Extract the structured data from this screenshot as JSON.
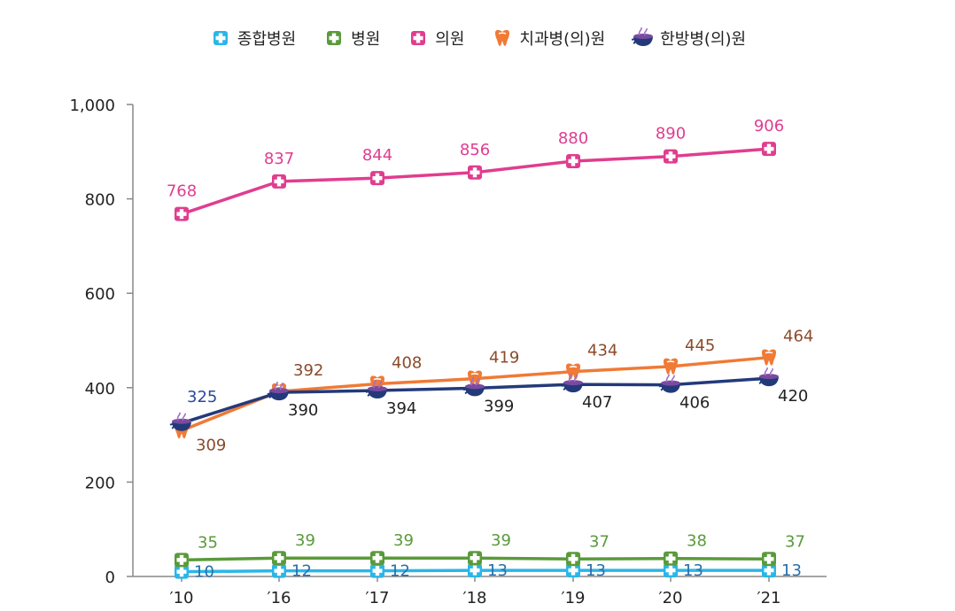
{
  "chart_data": {
    "type": "line",
    "categories": [
      "′10",
      "′16",
      "′17",
      "′18",
      "′19",
      "′20",
      "′21"
    ],
    "ylim": [
      0,
      1000
    ],
    "yticks": [
      "0",
      "200",
      "400",
      "600",
      "800",
      "1,000"
    ],
    "ytick_values": [
      0,
      200,
      400,
      600,
      800,
      1000
    ],
    "grid": false,
    "legend_position": "top-center",
    "series": [
      {
        "name": "종합병원",
        "icon": "medical-cross-icon",
        "color": "#29b6e8",
        "label_color": "#2a6ea8",
        "values": [
          10,
          12,
          12,
          13,
          13,
          13,
          13
        ],
        "labels": [
          "10",
          "12",
          "12",
          "13",
          "13",
          "13",
          "13"
        ]
      },
      {
        "name": "병원",
        "icon": "medical-cross-icon",
        "color": "#5a9a3a",
        "label_color": "#5a9a3a",
        "values": [
          35,
          39,
          39,
          39,
          37,
          38,
          37
        ],
        "labels": [
          "35",
          "39",
          "39",
          "39",
          "37",
          "38",
          "37"
        ]
      },
      {
        "name": "의원",
        "icon": "medical-cross-icon",
        "color": "#e03d8f",
        "label_color": "#e03d8f",
        "values": [
          768,
          837,
          844,
          856,
          880,
          890,
          906
        ],
        "labels": [
          "768",
          "837",
          "844",
          "856",
          "880",
          "890",
          "906"
        ]
      },
      {
        "name": "치과병(의)원",
        "icon": "tooth-icon",
        "color": "#f07a36",
        "label_color": "#8b4a2a",
        "values": [
          309,
          392,
          408,
          419,
          434,
          445,
          464
        ],
        "labels": [
          "309",
          "392",
          "408",
          "419",
          "434",
          "445",
          "464"
        ]
      },
      {
        "name": "한방병(의)원",
        "icon": "herbal-bowl-icon",
        "color": "#233a7a",
        "label_color": "#222222",
        "values": [
          325,
          390,
          394,
          399,
          407,
          406,
          420
        ],
        "labels": [
          "325",
          "390",
          "394",
          "399",
          "407",
          "406",
          "420"
        ],
        "first_label_color": "#2a4a9a"
      }
    ]
  }
}
